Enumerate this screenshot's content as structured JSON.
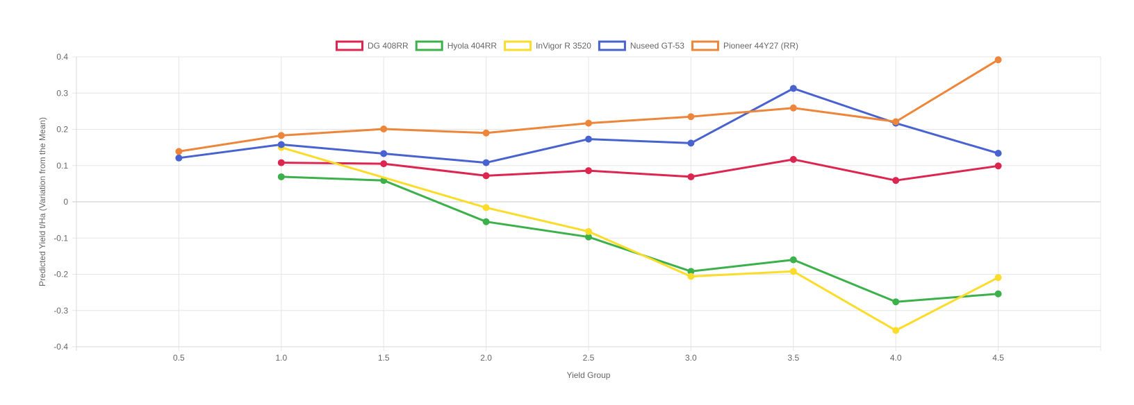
{
  "chart_data": {
    "type": "line",
    "xlabel": "Yield Group",
    "ylabel": "Predicted Yield t/Ha (Variation from the Mean)",
    "legend_position": "top",
    "grid": true,
    "xlim": [
      0,
      5
    ],
    "ylim": [
      -0.4,
      0.4
    ],
    "x_ticks": [
      0.5,
      1.0,
      1.5,
      2.0,
      2.5,
      3.0,
      3.5,
      4.0,
      4.5
    ],
    "x_tick_labels": [
      "0.5",
      "1.0",
      "1.5",
      "2.0",
      "2.5",
      "3.0",
      "3.5",
      "4.0",
      "4.5"
    ],
    "y_ticks": [
      0.4,
      0.3,
      0.2,
      0.1,
      0,
      -0.1,
      -0.2,
      -0.3,
      -0.4
    ],
    "y_tick_labels": [
      "0.4",
      "0.3",
      "0.2",
      "0.1",
      "0",
      "-0.1",
      "-0.2",
      "-0.3",
      "-0.4"
    ],
    "series": [
      {
        "name": "DG 408RR",
        "color": "#dc2650",
        "points": [
          [
            1.0,
            0.108
          ],
          [
            1.5,
            0.105
          ],
          [
            2.0,
            0.072
          ],
          [
            2.5,
            0.086
          ],
          [
            3.0,
            0.069
          ],
          [
            3.5,
            0.117
          ],
          [
            4.0,
            0.059
          ],
          [
            4.5,
            0.099
          ]
        ]
      },
      {
        "name": "Hyola 404RR",
        "color": "#3cb04a",
        "points": [
          [
            1.0,
            0.069
          ],
          [
            1.5,
            0.059
          ],
          [
            2.0,
            -0.055
          ],
          [
            2.5,
            -0.097
          ],
          [
            3.0,
            -0.192
          ],
          [
            3.5,
            -0.16
          ],
          [
            4.0,
            -0.276
          ],
          [
            4.5,
            -0.254
          ]
        ]
      },
      {
        "name": "InVigor R 3520",
        "color": "#fbdc2a",
        "points": [
          [
            1.0,
            0.15
          ],
          [
            2.0,
            -0.016
          ],
          [
            2.5,
            -0.082
          ],
          [
            3.0,
            -0.206
          ],
          [
            3.5,
            -0.192
          ],
          [
            4.0,
            -0.355
          ],
          [
            4.5,
            -0.209
          ]
        ]
      },
      {
        "name": "Nuseed GT-53",
        "color": "#4862d0",
        "points": [
          [
            0.5,
            0.121
          ],
          [
            1.0,
            0.158
          ],
          [
            1.5,
            0.133
          ],
          [
            2.0,
            0.108
          ],
          [
            2.5,
            0.173
          ],
          [
            3.0,
            0.162
          ],
          [
            3.5,
            0.313
          ],
          [
            4.0,
            0.217
          ],
          [
            4.5,
            0.134
          ]
        ]
      },
      {
        "name": "Pioneer 44Y27 (RR)",
        "color": "#ed853a",
        "points": [
          [
            0.5,
            0.139
          ],
          [
            1.0,
            0.183
          ],
          [
            1.5,
            0.201
          ],
          [
            2.0,
            0.19
          ],
          [
            2.5,
            0.217
          ],
          [
            3.0,
            0.235
          ],
          [
            3.5,
            0.259
          ],
          [
            4.0,
            0.221
          ],
          [
            4.5,
            0.392
          ]
        ]
      }
    ]
  }
}
